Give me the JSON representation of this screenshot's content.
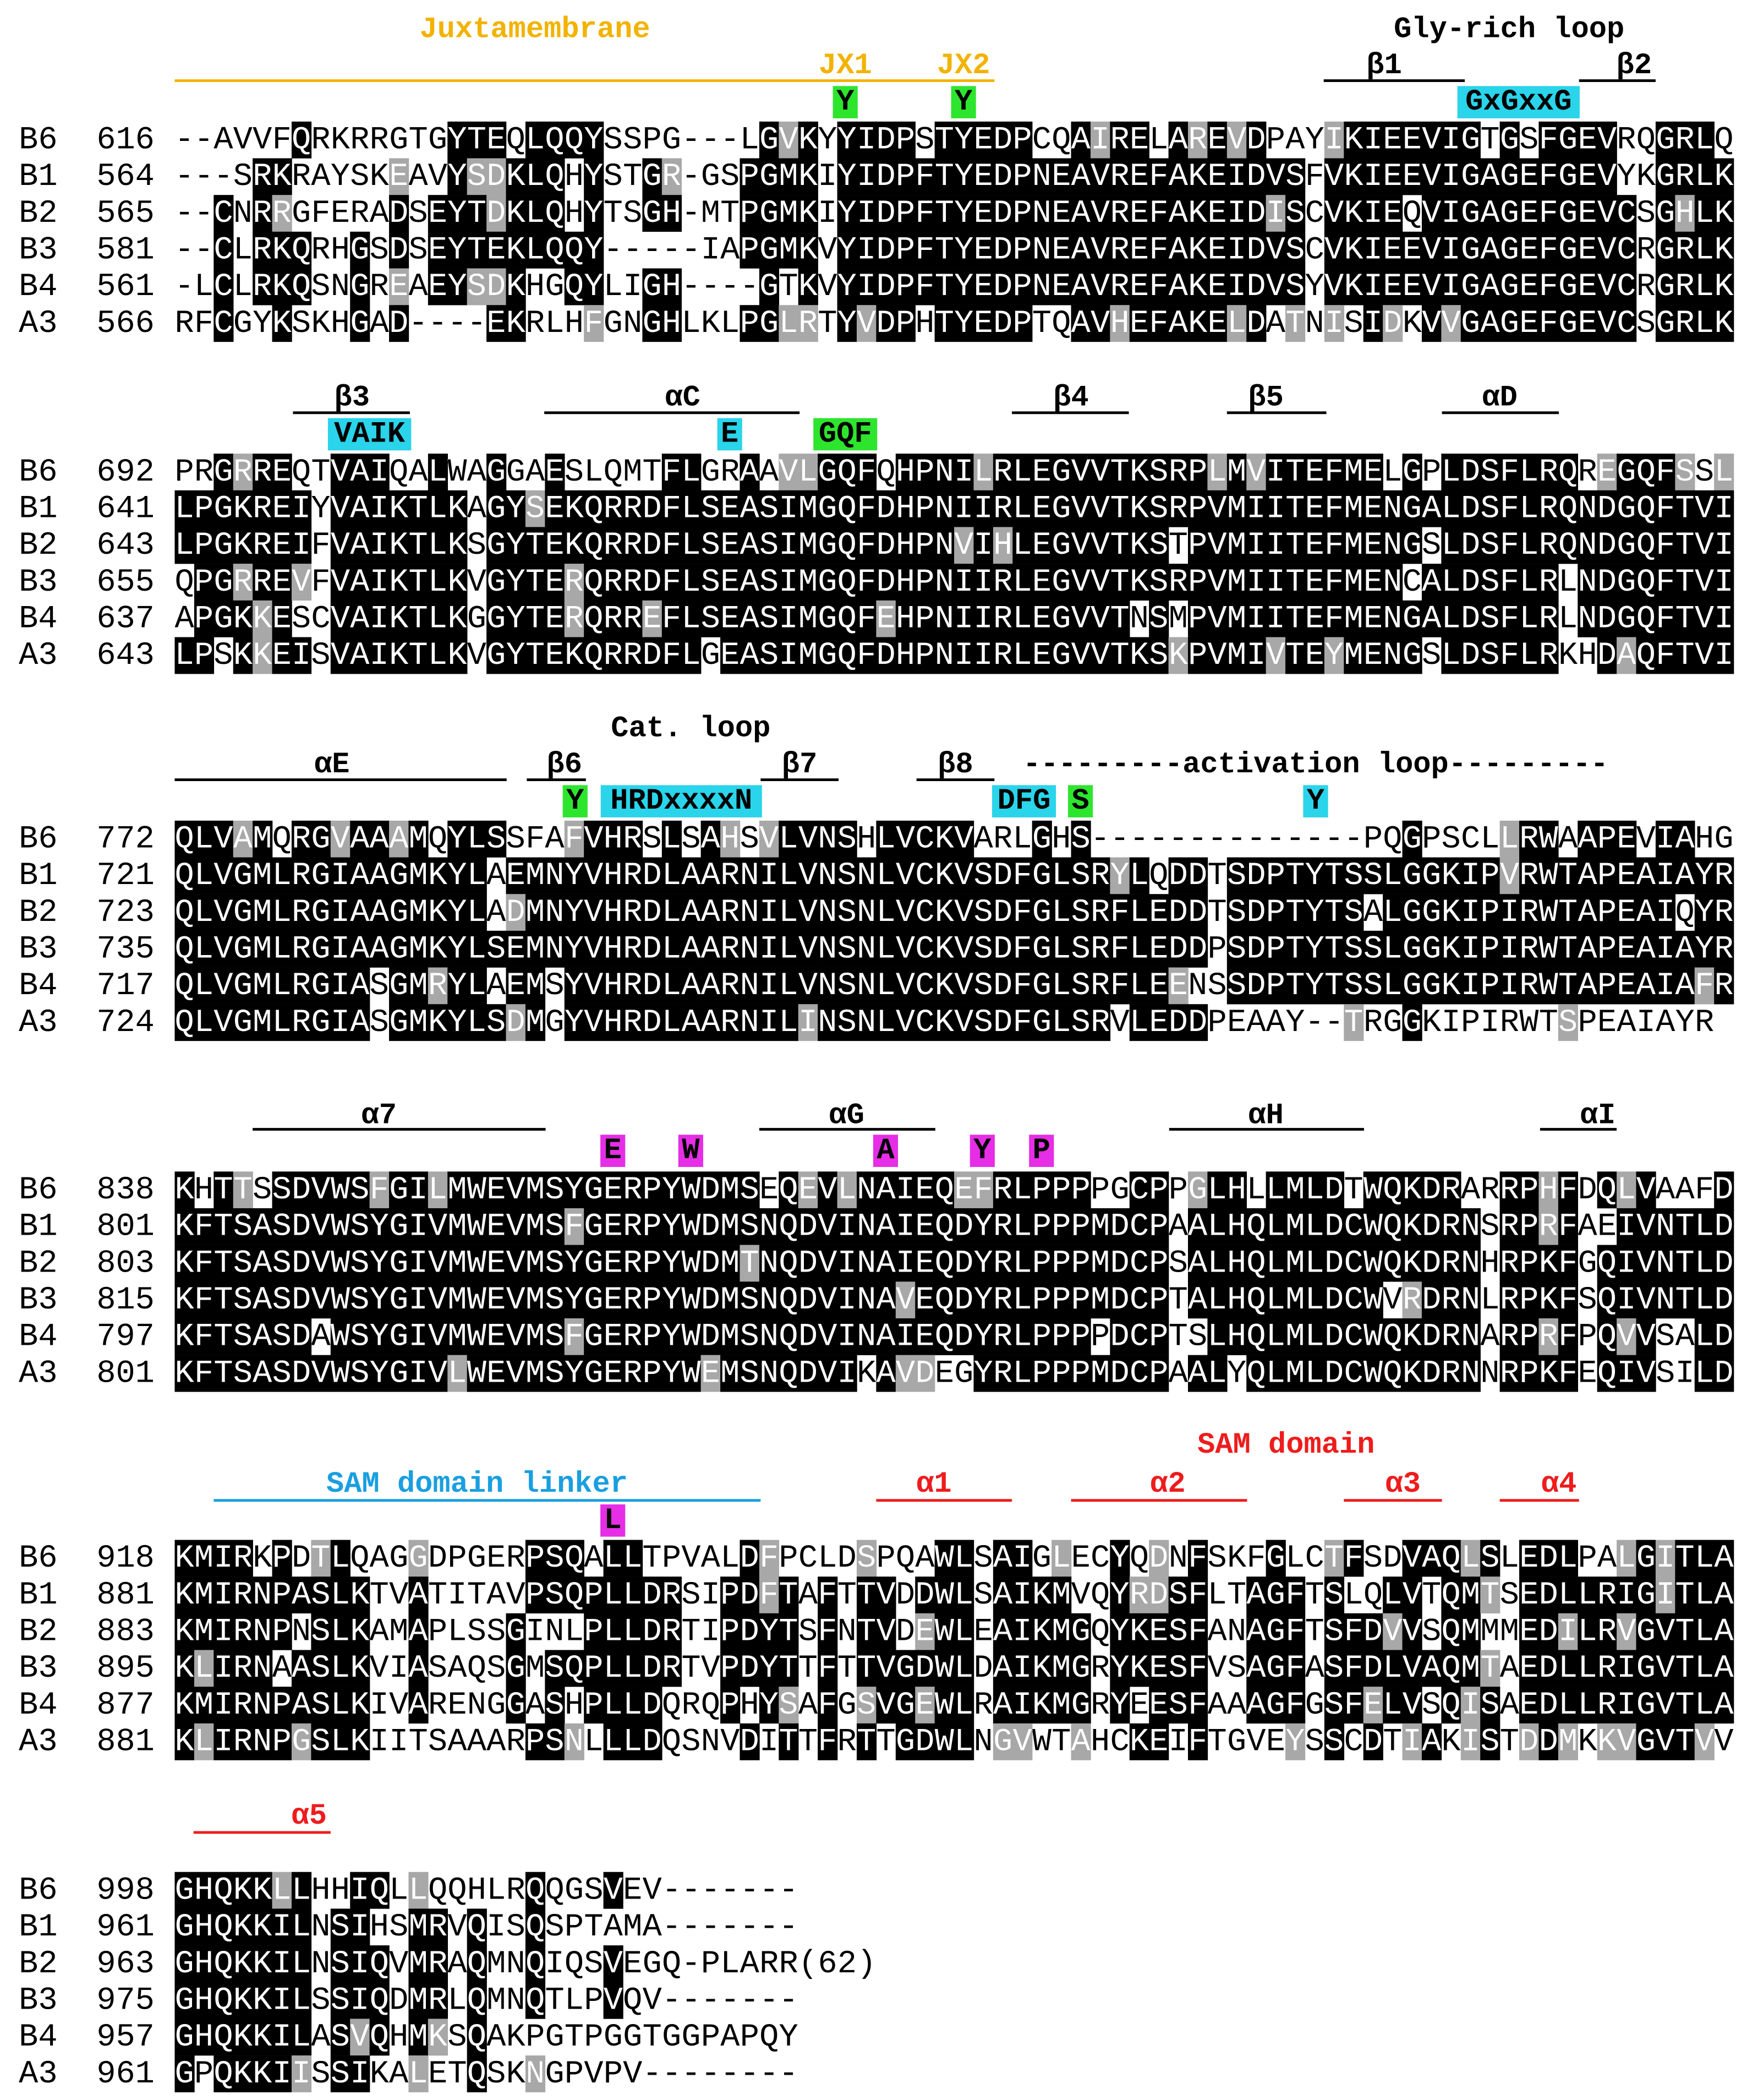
{
  "blocks": [
    {
      "annotations": [
        "Juxtamembrane",
        "JX1",
        "JX2",
        "Y",
        "Y",
        "Gly-rich loop",
        "β1",
        "β2",
        "GxGxxG"
      ],
      "rows": [
        {
          "name": "B6",
          "start": 616,
          "seq": "--AVVFQRKRRGTGYTEQLQQYSSPG---LGVKYYIDPSTYEDPCQAIRELAREVDPAYIKIEEVIGTGSFGEVRQGRLQ"
        },
        {
          "name": "B1",
          "start": 564,
          "seq": "---SRKRAYSKEAVYSDKLQHYSTGR-GSPGMKIYIDPFTYEDPNEAVREFAKEIDVSFVKIEEVIGAGEFGEVYKGRLK"
        },
        {
          "name": "B2",
          "start": 565,
          "seq": "--CNRRGFERADSEYTDKLQHYTSGH-MTPGMKIYIDPFTYEDPNEAVREFAKEIDISCVKIEQVIGAGEFGEVCSGHLK"
        },
        {
          "name": "B3",
          "start": 581,
          "seq": "--CLRKQRHGSDSEYTEKLQQY-----IAPGMKVYIDPFTYEDPNEAVREFAKEIDVSCVKIEEVIGAGEFGEVCRGRLK"
        },
        {
          "name": "B4",
          "start": 561,
          "seq": "-LCLRKQSNGREAEYSDKHGQYLIGH----GTKVYIDPFTYEDPNEAVREFAKEIDVSYVKIEEVIGAGEFGEVCRGRLK"
        },
        {
          "name": "A3",
          "start": 566,
          "seq": "RFCGYKSKHGAD----EKRLHFGNGHLKLPGLRTYVDPHTYEDPTQAVHEFAKELDATNISIDKVVGAGEFGEVCSGRLK"
        }
      ]
    },
    {
      "annotations": [
        "β3",
        "VAIK",
        "αC",
        "E",
        "GQF",
        "β4",
        "β5",
        "αD"
      ],
      "rows": [
        {
          "name": "B6",
          "start": 692,
          "seq": "PRGRREQTVAIQALWAGGAESLQMTFLGRAAVLGQFQHPNILRLEGVVTKSRPLMVITEFMELGPLDSFLRQREGQFSSL"
        },
        {
          "name": "B1",
          "start": 641,
          "seq": "LPGKREIYVAIKTLKAGYSEKQRRDFLSEASIMGQFDHPNIIRLEGVVTKSRPVMIITEFMENGALDSFLRQNDGQFTVI"
        },
        {
          "name": "B2",
          "start": 643,
          "seq": "LPGKREIFVAIKTLKSGYTEKQRRDFLSEASIMGQFDHPNVIHLEGVVTKSTPVMIITEFMENGSLDSFLRQNDGQFTVI"
        },
        {
          "name": "B3",
          "start": 655,
          "seq": "QPGRREVFVAIKTLKVGYTERQRRDFLSEASIMGQFDHPNIIRLEGVVTKSRPVMIITEFMENCALDSFLRLNDGQFTVI"
        },
        {
          "name": "B4",
          "start": 637,
          "seq": "APGKKESCVAIKTLKGGYTERQRREFLSEASIMGQFEHPNIIRLEGVVTNSMPVMIITEFMENGALDSFLRLNDGQFTVI"
        },
        {
          "name": "A3",
          "start": 643,
          "seq": "LPSKKEISVAIKTLKVGYTEKQRRDFLGEASIMGQFDHPNIIRLEGVVTKSKPVMIVTEYMENGSLDSFLRKHDAQFTVI"
        }
      ]
    },
    {
      "annotations": [
        "Cat. loop",
        "αE",
        "β6",
        "Y",
        "HRDxxxxN",
        "β7",
        "β8",
        "---------activation loop---------",
        "DFG",
        "S",
        "Y"
      ],
      "rows": [
        {
          "name": "B6",
          "start": 772,
          "seq": "QLVAMQRGVAAAMQYLSSFAFVHRSLSAHSVLVNSHLVCKVARLGHS--------------PQGPSCLLRWAAPEVIAHG"
        },
        {
          "name": "B1",
          "start": 721,
          "seq": "QLVGMLRGIAAGMKYLAEMNYVHRDLAARNILVNSNLVCKVSDFGLSRYLQDDTSDPTYTSSLGGKIPVRWTAPEAIAYR"
        },
        {
          "name": "B2",
          "start": 723,
          "seq": "QLVGMLRGIAAGMKYLADMNYVHRDLAARNILVNSNLVCKVSDFGLSRFLEDDTSDPTYTSALGGKIPIRWTAPEAIQYR"
        },
        {
          "name": "B3",
          "start": 735,
          "seq": "QLVGMLRGIAAGMKYLSEMNYVHRDLAARNILVNSNLVCKVSDFGLSRFLEDDPSDPTYTSSLGGKIPIRWTAPEAIAYR"
        },
        {
          "name": "B4",
          "start": 717,
          "seq": "QLVGMLRGIASGMRYLAEMSYVHRDLAARNILVNSNLVCKVSDFGLSRFLEENSSDPTYTSSLGGKIPIRWTAPEAIAFR"
        },
        {
          "name": "A3",
          "start": 724,
          "seq": "QLVGMLRGIASGMKYLSDMGYVHRDLAARNILINSNLVCKVSDFGLSRVLEDDPEAAY--TRGGKIPIRWTSPEAIAYR"
        }
      ]
    },
    {
      "annotations": [
        "α7",
        "E",
        "W",
        "αG",
        "A",
        "Y",
        "P",
        "αH",
        "αI"
      ],
      "rows": [
        {
          "name": "B6",
          "start": 838,
          "seq": "KHTTSSDVWSFGILMWEVMSYGERPYWDMSEQEVLNAIEQEFRLPPPPGCPPGLHLLMLDTWQKDRARRPHFDQLVAAFD"
        },
        {
          "name": "B1",
          "start": 801,
          "seq": "KFTSASDVWSYGIVMWEVMSFGERPYWDMSNQDVINAIEQDYRLPPPMDCPAALHQLMLDCWQKDRNSRPRFAEIVNTLD"
        },
        {
          "name": "B2",
          "start": 803,
          "seq": "KFTSASDVWSYGIVMWEVMSYGERPYWDMTNQDVINAIEQDYRLPPPMDCPSALHQLMLDCWQKDRNHRPKFGQIVNTLD"
        },
        {
          "name": "B3",
          "start": 815,
          "seq": "KFTSASDVWSYGIVMWEVMSYGERPYWDMSNQDVINAVEQDYRLPPPMDCPTALHQLMLDCWVRDRNLRPKFSQIVNTLD"
        },
        {
          "name": "B4",
          "start": 797,
          "seq": "KFTSASDAWSYGIVMWEVMSFGERPYWDMSNQDVINAIEQDYRLPPPPDCPTSLHQLMLDCWQKDRNARPRFPQVVSALD"
        },
        {
          "name": "A3",
          "start": 801,
          "seq": "KFTSASDVWSYGIVLWEVMSYGERPYWEMSNQDVIKAVDEGYRLPPPMDCPAALYQLMLDCWQKDRNNRPKFEQIVSILD"
        }
      ]
    },
    {
      "annotations": [
        "SAM domain linker",
        "L",
        "SAM domain",
        "α1",
        "α2",
        "α3",
        "α4"
      ],
      "rows": [
        {
          "name": "B6",
          "start": 918,
          "seq": "KMIRKPDTLQAGGDPGERPSQALLTPVALDFPCLDSPQAWLSAIGLECYQDNFSKFGLCTFSDVAQLSLEDLPALGITLA"
        },
        {
          "name": "B1",
          "start": 881,
          "seq": "KMIRNPASLKTVATITAVPSQPLLDRSIPDFTAFTTVDDWLSAIKMVQYRDSFLTAGFTSLQLVTQMTSEDLLRIGITLA"
        },
        {
          "name": "B2",
          "start": 883,
          "seq": "KMIRNPNSLKAMAPLSSGINLPLLDRTIPDYTSFNTVDEWLEAIKMGQYKESFANAGFTSFDVVSQMMMEDILRVGVTLA"
        },
        {
          "name": "B3",
          "start": 895,
          "seq": "KLIRNAASLKVIASAQSGMSQPLLDRTVPDYTTFTTVGDWLDAIKMGRYKESFVSAGFASFDLVAQMTAEDLLRIGVTLA"
        },
        {
          "name": "B4",
          "start": 877,
          "seq": "KMIRNPASLKIVARENGGASHPLLDQRQPHYSAFGSVGEWLRAIKMGRYEESFAAAGFGSFELVSQISAEDLLRIGVTLA"
        },
        {
          "name": "A3",
          "start": 881,
          "seq": "KLIRNPGSLKIITSAAARPSNLLLDQSNVDITTFRTTGDWLNGVWTAHCKEIFTGVEYSSCDTIAKISTDDMKKVGVTVV"
        }
      ]
    },
    {
      "annotations": [
        "α5"
      ],
      "rows": [
        {
          "name": "B6",
          "start": 998,
          "seq": "GHQKKLLHHIQLLQQHLRQQGSVEV-------"
        },
        {
          "name": "B1",
          "start": 961,
          "seq": "GHQKKILNSIHSMRVQISQSPTAMA-------"
        },
        {
          "name": "B2",
          "start": 963,
          "seq": "GHQKKILNSIQVMRAQMNQIQSVEGQ-PLARR(62)"
        },
        {
          "name": "B3",
          "start": 975,
          "seq": "GHQKKILSSIQDMRLQMNQTLPVQV-------"
        },
        {
          "name": "B4",
          "start": 957,
          "seq": "GHQKKILASVQHMKSQAKPGTPGGTGGPAPQY"
        },
        {
          "name": "A3",
          "start": 961,
          "seq": "GPQKKIISSIKALETQSKNGPVPV--------"
        }
      ]
    }
  ]
}
